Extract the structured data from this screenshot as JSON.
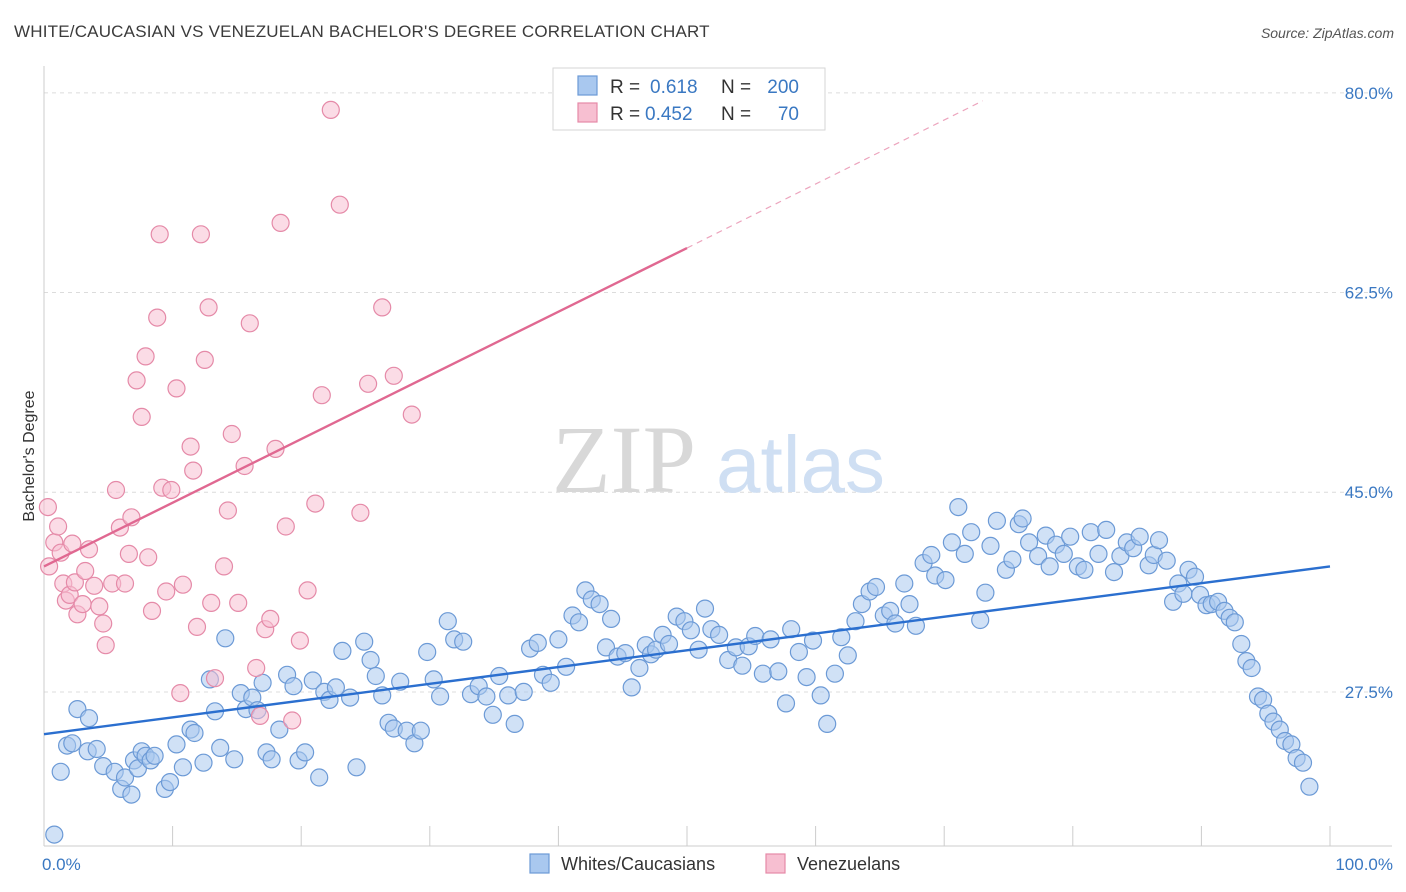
{
  "header": {
    "title": "WHITE/CAUCASIAN VS VENEZUELAN BACHELOR'S DEGREE CORRELATION CHART",
    "source": "Source: ZipAtlas.com"
  },
  "watermark": {
    "zip": "ZIP",
    "atlas": "atlas"
  },
  "colors": {
    "blue_fill": "#a9c8ef",
    "blue_stroke": "#6c9ad6",
    "blue_line": "#2b6fcf",
    "pink_fill": "#f7bfd1",
    "pink_stroke": "#e58aa8",
    "pink_line": "#e06891",
    "tick_text": "#3a78c2",
    "grid": "#dcdcdc"
  },
  "legend": {
    "rows": [
      {
        "r_label": "R = ",
        "r_value": "0.618",
        "n_label": "N = ",
        "n_value": "200"
      },
      {
        "r_label": "R = ",
        "r_value": "0.452",
        "n_label": "N = ",
        "n_value": "70"
      }
    ]
  },
  "chart_data": {
    "type": "scatter",
    "ylabel": "Bachelor's Degree",
    "xlim": [
      0,
      100
    ],
    "ylim": [
      14,
      82
    ],
    "x_tick_labels": [
      "0.0%",
      "100.0%"
    ],
    "y_ticks": [
      27.5,
      45.0,
      62.5,
      80.0
    ],
    "y_tick_labels": [
      "27.5%",
      "45.0%",
      "62.5%",
      "80.0%"
    ],
    "grid": true,
    "legend_placement": "top-center",
    "series": [
      {
        "name": "Whites/Caucasians",
        "color": "#a9c8ef",
        "trend": {
          "x": [
            0,
            100
          ],
          "y": [
            23.8,
            38.5
          ]
        },
        "points": [
          [
            0.8,
            15.0
          ],
          [
            1.3,
            20.5
          ],
          [
            1.8,
            22.8
          ],
          [
            2.2,
            23.0
          ],
          [
            2.6,
            26.0
          ],
          [
            3.4,
            22.3
          ],
          [
            3.5,
            25.2
          ],
          [
            4.1,
            22.5
          ],
          [
            4.6,
            21.0
          ],
          [
            5.5,
            20.5
          ],
          [
            6.0,
            19.0
          ],
          [
            6.3,
            20.0
          ],
          [
            6.8,
            18.5
          ],
          [
            7.0,
            21.5
          ],
          [
            7.3,
            20.8
          ],
          [
            7.6,
            22.3
          ],
          [
            7.9,
            21.9
          ],
          [
            8.3,
            21.5
          ],
          [
            8.6,
            21.9
          ],
          [
            9.4,
            19.0
          ],
          [
            9.8,
            19.6
          ],
          [
            10.3,
            22.9
          ],
          [
            10.8,
            20.9
          ],
          [
            11.4,
            24.2
          ],
          [
            11.7,
            23.9
          ],
          [
            12.4,
            21.3
          ],
          [
            12.9,
            28.6
          ],
          [
            13.3,
            25.8
          ],
          [
            13.7,
            22.6
          ],
          [
            14.1,
            32.2
          ],
          [
            14.8,
            21.6
          ],
          [
            15.3,
            27.4
          ],
          [
            15.7,
            26.0
          ],
          [
            16.2,
            27.0
          ],
          [
            16.6,
            25.9
          ],
          [
            17.0,
            28.3
          ],
          [
            17.3,
            22.2
          ],
          [
            17.7,
            21.6
          ],
          [
            18.3,
            24.2
          ],
          [
            18.9,
            29.0
          ],
          [
            19.4,
            28.0
          ],
          [
            19.8,
            21.5
          ],
          [
            20.3,
            22.2
          ],
          [
            20.9,
            28.5
          ],
          [
            21.4,
            20.0
          ],
          [
            21.8,
            27.5
          ],
          [
            22.2,
            26.8
          ],
          [
            22.7,
            27.9
          ],
          [
            23.2,
            31.1
          ],
          [
            23.8,
            27.0
          ],
          [
            24.3,
            20.9
          ],
          [
            24.9,
            31.9
          ],
          [
            25.4,
            30.3
          ],
          [
            25.8,
            28.9
          ],
          [
            26.3,
            27.2
          ],
          [
            26.8,
            24.8
          ],
          [
            27.2,
            24.3
          ],
          [
            27.7,
            28.4
          ],
          [
            28.2,
            24.1
          ],
          [
            28.8,
            23.0
          ],
          [
            29.3,
            24.1
          ],
          [
            29.8,
            31.0
          ],
          [
            30.3,
            28.6
          ],
          [
            30.8,
            27.1
          ],
          [
            31.4,
            33.7
          ],
          [
            31.9,
            32.1
          ],
          [
            32.6,
            31.9
          ],
          [
            33.2,
            27.3
          ],
          [
            33.8,
            28.0
          ],
          [
            34.4,
            27.1
          ],
          [
            34.9,
            25.5
          ],
          [
            35.4,
            28.9
          ],
          [
            36.1,
            27.2
          ],
          [
            36.6,
            24.7
          ],
          [
            37.3,
            27.5
          ],
          [
            37.8,
            31.3
          ],
          [
            38.4,
            31.8
          ],
          [
            38.8,
            29.0
          ],
          [
            39.4,
            28.3
          ],
          [
            40.0,
            32.1
          ],
          [
            40.6,
            29.7
          ],
          [
            41.1,
            34.2
          ],
          [
            41.6,
            33.6
          ],
          [
            42.1,
            36.4
          ],
          [
            42.6,
            35.6
          ],
          [
            43.2,
            35.2
          ],
          [
            43.7,
            31.4
          ],
          [
            44.1,
            33.9
          ],
          [
            44.6,
            30.6
          ],
          [
            45.2,
            30.9
          ],
          [
            45.7,
            27.9
          ],
          [
            46.3,
            29.6
          ],
          [
            46.8,
            31.6
          ],
          [
            47.2,
            30.8
          ],
          [
            47.6,
            31.2
          ],
          [
            48.1,
            32.5
          ],
          [
            48.6,
            31.7
          ],
          [
            49.2,
            34.1
          ],
          [
            49.8,
            33.7
          ],
          [
            50.3,
            32.9
          ],
          [
            50.9,
            31.2
          ],
          [
            51.4,
            34.8
          ],
          [
            51.9,
            33.0
          ],
          [
            52.5,
            32.5
          ],
          [
            53.2,
            30.3
          ],
          [
            53.8,
            31.4
          ],
          [
            54.3,
            29.8
          ],
          [
            54.8,
            31.5
          ],
          [
            55.3,
            32.4
          ],
          [
            55.9,
            29.1
          ],
          [
            56.5,
            32.1
          ],
          [
            57.1,
            29.3
          ],
          [
            57.7,
            26.5
          ],
          [
            58.1,
            33.0
          ],
          [
            58.7,
            31.0
          ],
          [
            59.3,
            28.8
          ],
          [
            59.8,
            32.0
          ],
          [
            60.4,
            27.2
          ],
          [
            60.9,
            24.7
          ],
          [
            61.5,
            29.1
          ],
          [
            62.0,
            32.3
          ],
          [
            62.5,
            30.7
          ],
          [
            63.1,
            33.7
          ],
          [
            63.6,
            35.2
          ],
          [
            64.2,
            36.3
          ],
          [
            64.7,
            36.7
          ],
          [
            65.3,
            34.2
          ],
          [
            65.8,
            34.6
          ],
          [
            66.2,
            33.5
          ],
          [
            66.9,
            37.0
          ],
          [
            67.3,
            35.2
          ],
          [
            67.8,
            33.3
          ],
          [
            68.4,
            38.8
          ],
          [
            69.0,
            39.5
          ],
          [
            69.3,
            37.7
          ],
          [
            70.1,
            37.3
          ],
          [
            70.6,
            40.6
          ],
          [
            71.1,
            43.7
          ],
          [
            71.6,
            39.6
          ],
          [
            72.1,
            41.5
          ],
          [
            72.8,
            33.8
          ],
          [
            73.2,
            36.2
          ],
          [
            73.6,
            40.3
          ],
          [
            74.1,
            42.5
          ],
          [
            74.8,
            38.2
          ],
          [
            75.3,
            39.1
          ],
          [
            75.8,
            42.2
          ],
          [
            76.1,
            42.7
          ],
          [
            76.6,
            40.6
          ],
          [
            77.3,
            39.4
          ],
          [
            77.9,
            41.2
          ],
          [
            78.2,
            38.5
          ],
          [
            78.7,
            40.4
          ],
          [
            79.3,
            39.6
          ],
          [
            79.8,
            41.1
          ],
          [
            80.4,
            38.5
          ],
          [
            80.9,
            38.2
          ],
          [
            81.4,
            41.5
          ],
          [
            82.0,
            39.6
          ],
          [
            82.6,
            41.7
          ],
          [
            83.2,
            38.0
          ],
          [
            83.7,
            39.4
          ],
          [
            84.2,
            40.6
          ],
          [
            84.7,
            40.1
          ],
          [
            85.2,
            41.1
          ],
          [
            85.9,
            38.6
          ],
          [
            86.3,
            39.5
          ],
          [
            86.7,
            40.8
          ],
          [
            87.3,
            39.0
          ],
          [
            87.8,
            35.4
          ],
          [
            88.2,
            37.0
          ],
          [
            88.6,
            36.1
          ],
          [
            89.0,
            38.2
          ],
          [
            89.5,
            37.6
          ],
          [
            89.9,
            36.0
          ],
          [
            90.4,
            35.1
          ],
          [
            90.8,
            35.2
          ],
          [
            91.3,
            35.4
          ],
          [
            91.8,
            34.6
          ],
          [
            92.2,
            34.0
          ],
          [
            92.6,
            33.6
          ],
          [
            93.1,
            31.7
          ],
          [
            93.5,
            30.2
          ],
          [
            93.9,
            29.6
          ],
          [
            94.4,
            27.1
          ],
          [
            94.8,
            26.8
          ],
          [
            95.2,
            25.6
          ],
          [
            95.6,
            24.9
          ],
          [
            96.1,
            24.2
          ],
          [
            96.5,
            23.2
          ],
          [
            97.0,
            22.9
          ],
          [
            97.4,
            21.7
          ],
          [
            97.9,
            21.3
          ],
          [
            98.4,
            19.2
          ]
        ]
      },
      {
        "name": "Venezuelans",
        "color": "#f7bfd1",
        "trend": {
          "x": [
            0,
            50
          ],
          "y": [
            38.5,
            66.4
          ]
        },
        "trend_dashed": {
          "x": [
            50,
            73
          ],
          "y": [
            66.4,
            79.3
          ]
        },
        "points": [
          [
            0.3,
            43.7
          ],
          [
            0.4,
            38.5
          ],
          [
            0.8,
            40.6
          ],
          [
            1.1,
            42.0
          ],
          [
            1.3,
            39.7
          ],
          [
            1.5,
            37.0
          ],
          [
            1.7,
            35.5
          ],
          [
            2.0,
            36.0
          ],
          [
            2.2,
            40.5
          ],
          [
            2.4,
            37.1
          ],
          [
            2.6,
            34.3
          ],
          [
            3.0,
            35.2
          ],
          [
            3.2,
            38.1
          ],
          [
            3.5,
            40.0
          ],
          [
            3.9,
            36.8
          ],
          [
            4.3,
            35.0
          ],
          [
            4.6,
            33.5
          ],
          [
            4.8,
            31.6
          ],
          [
            5.3,
            37.0
          ],
          [
            5.6,
            45.2
          ],
          [
            5.9,
            41.9
          ],
          [
            6.3,
            37.0
          ],
          [
            6.6,
            39.6
          ],
          [
            6.8,
            42.8
          ],
          [
            7.2,
            54.8
          ],
          [
            7.6,
            51.6
          ],
          [
            7.9,
            56.9
          ],
          [
            8.1,
            39.3
          ],
          [
            8.4,
            34.6
          ],
          [
            8.8,
            60.3
          ],
          [
            9.0,
            67.6
          ],
          [
            9.2,
            45.4
          ],
          [
            9.5,
            36.3
          ],
          [
            9.9,
            45.2
          ],
          [
            10.3,
            54.1
          ],
          [
            10.6,
            27.4
          ],
          [
            10.8,
            36.9
          ],
          [
            11.4,
            49.0
          ],
          [
            11.6,
            46.9
          ],
          [
            11.9,
            33.2
          ],
          [
            12.2,
            67.6
          ],
          [
            12.5,
            56.6
          ],
          [
            12.8,
            61.2
          ],
          [
            13.0,
            35.3
          ],
          [
            13.3,
            28.7
          ],
          [
            14.0,
            38.5
          ],
          [
            14.3,
            43.4
          ],
          [
            14.6,
            50.1
          ],
          [
            15.1,
            35.3
          ],
          [
            15.6,
            47.3
          ],
          [
            16.0,
            59.8
          ],
          [
            16.5,
            29.6
          ],
          [
            16.8,
            25.4
          ],
          [
            17.2,
            33.0
          ],
          [
            17.6,
            33.9
          ],
          [
            18.0,
            48.8
          ],
          [
            18.4,
            68.6
          ],
          [
            18.8,
            42.0
          ],
          [
            19.3,
            25.0
          ],
          [
            19.9,
            32.0
          ],
          [
            20.5,
            36.4
          ],
          [
            21.1,
            44.0
          ],
          [
            21.6,
            53.5
          ],
          [
            22.3,
            78.5
          ],
          [
            23.0,
            70.2
          ],
          [
            24.6,
            43.2
          ],
          [
            25.2,
            54.5
          ],
          [
            26.3,
            61.2
          ],
          [
            27.2,
            55.2
          ],
          [
            28.6,
            51.8
          ]
        ]
      }
    ]
  },
  "bottom_legend": [
    {
      "label": "Whites/Caucasians"
    },
    {
      "label": "Venezuelans"
    }
  ]
}
